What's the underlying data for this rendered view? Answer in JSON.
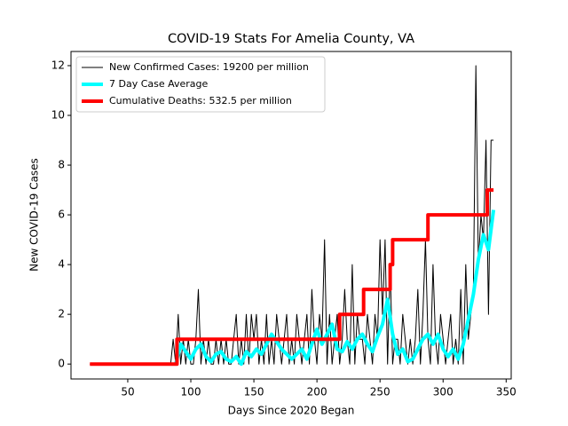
{
  "chart_data": {
    "type": "line",
    "title": "COVID-19 Stats For Amelia County, VA",
    "x_label": "Days Since 2020 Began",
    "y_label": "New COVID-19 Cases",
    "xlim": [
      5,
      354
    ],
    "ylim": [
      -0.6,
      12.57
    ],
    "xticks": [
      50,
      100,
      150,
      200,
      250,
      300,
      350
    ],
    "yticks": [
      0,
      2,
      4,
      6,
      8,
      10,
      12
    ],
    "legend": "upper left",
    "series": [
      {
        "name": "New Confirmed Cases: 19200 per million",
        "color": "#000000",
        "width": 1,
        "x": [
          20,
          84,
          86,
          88,
          90,
          92,
          94,
          96,
          98,
          100,
          102,
          104,
          106,
          108,
          110,
          112,
          114,
          116,
          118,
          120,
          122,
          124,
          126,
          128,
          130,
          132,
          134,
          136,
          138,
          140,
          142,
          144,
          146,
          148,
          150,
          152,
          154,
          156,
          158,
          160,
          162,
          164,
          166,
          168,
          170,
          172,
          174,
          176,
          178,
          180,
          182,
          184,
          186,
          188,
          190,
          192,
          194,
          196,
          198,
          200,
          202,
          204,
          206,
          208,
          210,
          212,
          214,
          216,
          218,
          220,
          222,
          224,
          226,
          228,
          230,
          232,
          234,
          236,
          238,
          240,
          242,
          244,
          246,
          248,
          250,
          252,
          254,
          256,
          258,
          260,
          262,
          264,
          266,
          268,
          270,
          272,
          274,
          276,
          278,
          280,
          282,
          284,
          286,
          288,
          290,
          292,
          294,
          296,
          298,
          300,
          302,
          304,
          306,
          308,
          310,
          312,
          314,
          316,
          318,
          320,
          322,
          324,
          326,
          328,
          330,
          332,
          334,
          336,
          338,
          340
        ],
        "values": [
          0,
          0,
          1,
          0,
          2,
          0,
          1,
          0,
          1,
          0,
          0,
          1,
          3,
          0,
          1,
          0,
          1,
          0,
          0,
          1,
          0,
          1,
          0,
          1,
          0,
          0,
          1,
          2,
          0,
          1,
          0,
          2,
          0,
          2,
          1,
          2,
          0,
          1,
          0,
          2,
          0,
          1,
          0,
          2,
          1,
          0,
          1,
          2,
          0,
          1,
          0,
          2,
          1,
          0,
          1,
          2,
          0,
          3,
          1,
          0,
          2,
          1,
          5,
          0,
          2,
          0,
          1,
          2,
          0,
          1,
          3,
          1,
          0,
          4,
          0,
          2,
          1,
          1,
          0,
          2,
          1,
          0,
          2,
          1,
          5,
          2,
          5,
          0,
          4,
          0,
          1,
          1,
          0,
          2,
          1,
          0,
          1,
          0,
          1,
          3,
          0,
          2,
          5,
          1,
          0,
          4,
          1,
          0,
          2,
          1,
          0,
          1,
          2,
          0,
          1,
          0,
          3,
          0,
          4,
          1,
          2,
          3,
          12,
          4,
          6,
          5,
          9,
          2,
          9,
          9
        ]
      },
      {
        "name": "7 Day Case Average",
        "color": "#00ffff",
        "width": 4,
        "x": [
          88,
          92,
          96,
          100,
          104,
          108,
          112,
          116,
          120,
          124,
          128,
          132,
          136,
          140,
          144,
          148,
          152,
          156,
          160,
          164,
          168,
          172,
          176,
          180,
          184,
          188,
          192,
          196,
          200,
          204,
          208,
          212,
          216,
          220,
          224,
          228,
          232,
          236,
          240,
          244,
          248,
          252,
          256,
          260,
          264,
          268,
          272,
          276,
          280,
          284,
          288,
          292,
          296,
          300,
          304,
          308,
          312,
          316,
          320,
          324,
          328,
          332,
          336,
          340
        ],
        "values": [
          0,
          0.8,
          0.5,
          0.2,
          0.6,
          0.8,
          0.3,
          0.1,
          0.4,
          0.5,
          0.2,
          0.1,
          0.3,
          0,
          0.5,
          0.3,
          0.6,
          0.4,
          0.8,
          1.2,
          0.9,
          0.6,
          0.4,
          0.2,
          0.4,
          0.6,
          0.2,
          0.8,
          1.4,
          0.8,
          1.2,
          1.6,
          0.6,
          0.5,
          0.9,
          0.6,
          1,
          1.2,
          0.8,
          0.5,
          1.1,
          1.6,
          2.6,
          1.2,
          0.4,
          0.6,
          0.1,
          0.2,
          0.6,
          1,
          1.2,
          0.8,
          1.2,
          0.6,
          0.3,
          0.6,
          0.2,
          0.8,
          1.8,
          2.8,
          4.2,
          5.2,
          4.6,
          6.2
        ]
      },
      {
        "name": "Cumulative Deaths: 532.5 per million",
        "color": "#ff0000",
        "width": 4,
        "x": [
          20,
          89,
          89,
          218,
          218,
          237,
          237,
          258,
          258,
          260,
          260,
          288,
          288,
          335,
          335,
          340
        ],
        "values": [
          0,
          0,
          1,
          1,
          2,
          2,
          3,
          3,
          4,
          4,
          5,
          5,
          6,
          6,
          7,
          7
        ]
      }
    ]
  }
}
